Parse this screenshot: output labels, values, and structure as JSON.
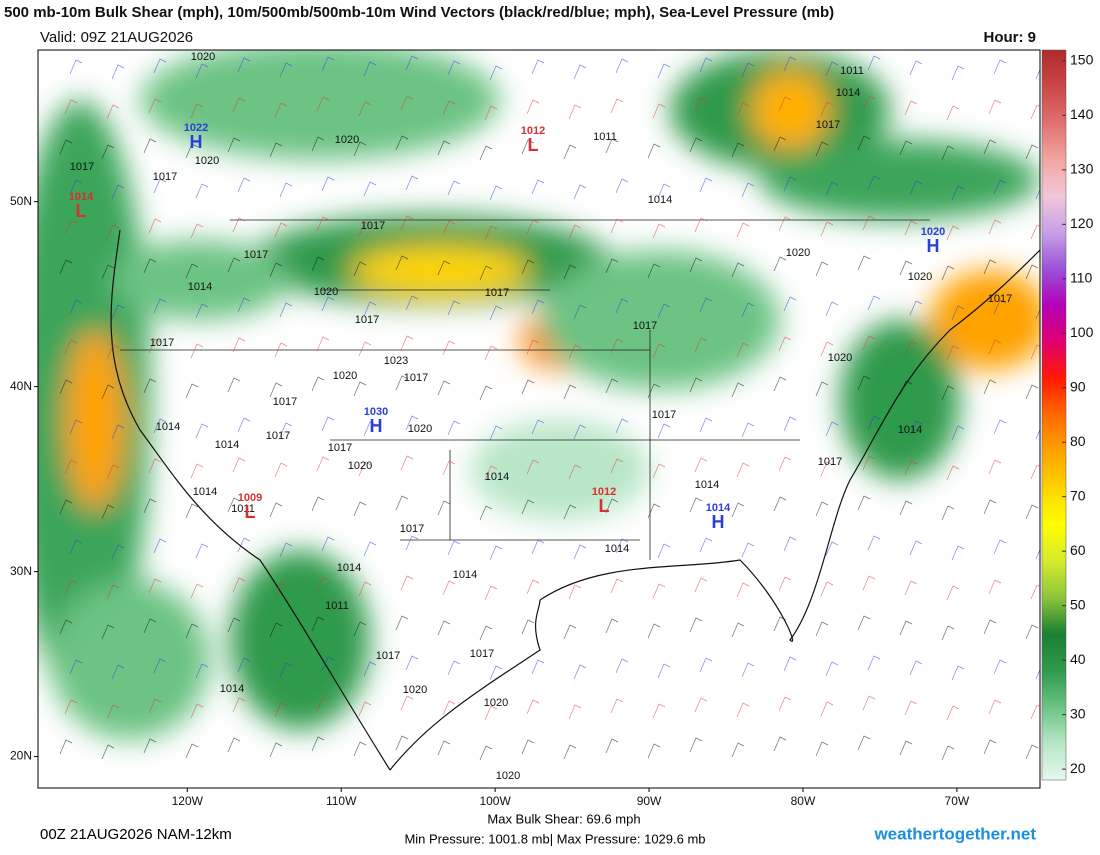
{
  "header": {
    "title": "500 mb-10m Bulk Shear (mph), 10m/500mb/500mb-10m Wind Vectors (black/red/blue; mph), Sea-Level Pressure (mb)",
    "valid": "Valid: 09Z 21AUG2026",
    "hour": "Hour: 9"
  },
  "colorbar": {
    "range": [
      18,
      152
    ],
    "ticks": [
      20,
      30,
      40,
      50,
      60,
      70,
      80,
      90,
      100,
      110,
      120,
      130,
      140,
      150
    ],
    "colors": [
      "#e6f7ee",
      "#b8e6c6",
      "#6cc384",
      "#2e9a4c",
      "#1b7f34",
      "#8cc63c",
      "#d6ea2a",
      "#ffff00",
      "#ffd400",
      "#ffa200",
      "#ff6a00",
      "#ff1a00",
      "#e0006e",
      "#b400b8",
      "#9a52d6",
      "#c8a0e6",
      "#f2c6d8",
      "#f2a6a0",
      "#e07070",
      "#cc4848",
      "#b02a2a"
    ]
  },
  "map": {
    "lat_range": [
      18.3,
      58.2
    ],
    "lon_range": [
      -129.7,
      -64.6
    ],
    "lat_ticks": [
      {
        "value": 50,
        "label": "50N"
      },
      {
        "value": 40,
        "label": "40N"
      },
      {
        "value": 30,
        "label": "30N"
      },
      {
        "value": 20,
        "label": "20N"
      }
    ],
    "lon_ticks": [
      {
        "value": -120,
        "label": "120W"
      },
      {
        "value": -110,
        "label": "110W"
      },
      {
        "value": -100,
        "label": "100W"
      },
      {
        "value": -90,
        "label": "90W"
      },
      {
        "value": -80,
        "label": "80W"
      },
      {
        "value": -70,
        "label": "70W"
      }
    ],
    "pressure_centers": [
      {
        "label": "1022",
        "letter": "H",
        "color": "#2b3fd8"
      },
      {
        "label": "1012",
        "letter": "L",
        "color": "#d83030"
      },
      {
        "label": "1020",
        "letter": "H",
        "color": "#2b3fd8"
      },
      {
        "label": "1030",
        "letter": "H",
        "color": "#2b3fd8"
      },
      {
        "label": "1009",
        "letter": "L",
        "color": "#d83030"
      },
      {
        "label": "1012",
        "letter": "L",
        "color": "#d83030"
      },
      {
        "label": "1014",
        "letter": "H",
        "color": "#2b3fd8"
      },
      {
        "label": "1014",
        "letter": "L",
        "color": "#d83030"
      }
    ],
    "isobar_labels": [
      1020,
      1020,
      1017,
      1017,
      1020,
      1011,
      1011,
      1014,
      1017,
      1017,
      1017,
      1014,
      1020,
      1020,
      1017,
      1014,
      1020,
      1017,
      1017,
      1017,
      1017,
      1023,
      1020,
      1020,
      1017,
      1017,
      1020,
      1017,
      1014,
      1017,
      1014,
      1017,
      1014,
      1020,
      1017,
      1014,
      1014,
      1014,
      1011,
      1017,
      1014,
      1014,
      1014,
      1011,
      1017,
      1017,
      1014,
      1020,
      1020,
      1020
    ]
  },
  "footer": {
    "run": "00Z 21AUG2026 NAM-12km",
    "max_shear": "Max Bulk Shear:  69.6 mph",
    "pressure_range": "Min Pressure: 1001.8 mb| Max Pressure: 1029.6 mb",
    "site": "weathertogether.net"
  }
}
